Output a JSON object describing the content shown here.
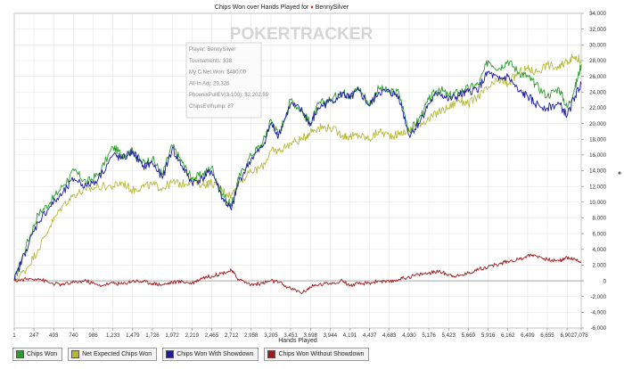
{
  "chart_data": {
    "type": "line",
    "title": "Chips Won over Hands Played for ",
    "player_name": "BennySilver",
    "watermark": "POKERTRACKER",
    "xlabel": "Hands Played",
    "ylabel": "",
    "xlim": [
      1,
      7078
    ],
    "ylim": [
      -6000,
      34000
    ],
    "x_ticks": [
      "1",
      "247",
      "493",
      "740",
      "986",
      "1,233",
      "1,479",
      "1,726",
      "1,972",
      "2,219",
      "2,465",
      "2,712",
      "2,958",
      "3,205",
      "3,451",
      "3,698",
      "3,944",
      "4,191",
      "4,437",
      "4,683",
      "4,930",
      "5,176",
      "5,423",
      "5,669",
      "5,916",
      "6,162",
      "6,409",
      "6,655",
      "6,902",
      "7,078"
    ],
    "y_ticks": [
      "-6,000",
      "-4,000",
      "-2,000",
      "0",
      "2,000",
      "4,000",
      "6,000",
      "8,000",
      "10,000",
      "12,000",
      "14,000",
      "16,000",
      "18,000",
      "20,000",
      "22,000",
      "24,000",
      "26,000",
      "28,000",
      "30,000",
      "32,000",
      "34,000"
    ],
    "grid": true,
    "legend_position": "bottom-left",
    "info_box": [
      "Player: BennySilver",
      "Tournaments: 338",
      "My C Net Won: $480.00",
      "All-In Adj: 29,326",
      "PhoenixPullEV(3-100): $2,202.59",
      "ChipsEV/hump: 87"
    ],
    "series": [
      {
        "name": "Chips Won",
        "color": "#2e9b2e",
        "x": [
          1,
          150,
          300,
          450,
          600,
          750,
          900,
          1050,
          1233,
          1350,
          1479,
          1600,
          1726,
          1850,
          1972,
          2100,
          2219,
          2350,
          2465,
          2600,
          2712,
          2800,
          2958,
          3100,
          3205,
          3300,
          3451,
          3600,
          3698,
          3800,
          3944,
          4100,
          4191,
          4300,
          4437,
          4550,
          4683,
          4800,
          4930,
          5050,
          5176,
          5300,
          5423,
          5550,
          5669,
          5800,
          5916,
          6050,
          6162,
          6300,
          6409,
          6500,
          6655,
          6800,
          6902,
          7000,
          7078
        ],
        "values": [
          0,
          4500,
          8500,
          10000,
          12000,
          14000,
          12500,
          13500,
          17000,
          16000,
          16500,
          15000,
          15500,
          13500,
          17200,
          15000,
          13000,
          13500,
          14500,
          11000,
          9500,
          13000,
          16000,
          17500,
          20500,
          18500,
          23000,
          21500,
          20000,
          22500,
          23000,
          24000,
          23500,
          24500,
          22500,
          24500,
          24000,
          24000,
          19000,
          20500,
          23000,
          24500,
          23500,
          24000,
          24500,
          25000,
          28000,
          27000,
          28000,
          26500,
          26000,
          25000,
          23500,
          24500,
          22000,
          24500,
          27500
        ]
      },
      {
        "name": "Net Expected Chips Won",
        "color": "#b7b93a",
        "x": [
          1,
          150,
          300,
          450,
          600,
          750,
          900,
          1050,
          1233,
          1350,
          1479,
          1600,
          1726,
          1850,
          1972,
          2100,
          2219,
          2350,
          2465,
          2600,
          2712,
          2800,
          2958,
          3100,
          3205,
          3300,
          3451,
          3600,
          3698,
          3800,
          3944,
          4100,
          4191,
          4300,
          4437,
          4550,
          4683,
          4800,
          4930,
          5050,
          5176,
          5300,
          5423,
          5550,
          5669,
          5800,
          5916,
          6050,
          6162,
          6300,
          6409,
          6500,
          6655,
          6800,
          6902,
          7000,
          7078
        ],
        "values": [
          0,
          1500,
          4000,
          7000,
          9500,
          11000,
          11500,
          12000,
          12000,
          12500,
          11500,
          12000,
          12200,
          11800,
          12500,
          12300,
          12800,
          12200,
          12500,
          11500,
          10800,
          12500,
          13800,
          14500,
          16500,
          16500,
          17500,
          18000,
          19000,
          19500,
          19500,
          18500,
          18300,
          18500,
          18000,
          19000,
          18500,
          18600,
          19200,
          20000,
          20500,
          21500,
          22000,
          23000,
          22500,
          23500,
          24500,
          25500,
          25000,
          26500,
          27000,
          26500,
          27500,
          27000,
          28000,
          28500,
          28000
        ]
      },
      {
        "name": "Chips Won With Showdown",
        "color": "#1c1c9c",
        "x": [
          1,
          150,
          300,
          450,
          600,
          750,
          900,
          1050,
          1233,
          1350,
          1479,
          1600,
          1726,
          1850,
          1972,
          2100,
          2219,
          2350,
          2465,
          2600,
          2712,
          2800,
          2958,
          3100,
          3205,
          3300,
          3451,
          3600,
          3698,
          3800,
          3944,
          4100,
          4191,
          4300,
          4437,
          4550,
          4683,
          4800,
          4930,
          5050,
          5176,
          5300,
          5423,
          5550,
          5669,
          5800,
          5916,
          6050,
          6162,
          6300,
          6409,
          6500,
          6655,
          6800,
          6902,
          7000,
          7078
        ],
        "values": [
          0,
          4000,
          7500,
          9500,
          11000,
          13000,
          12000,
          13000,
          16000,
          15500,
          16500,
          14500,
          15000,
          13000,
          16800,
          14500,
          12500,
          13000,
          14000,
          10500,
          9000,
          12500,
          15500,
          17000,
          20000,
          18500,
          22500,
          21500,
          19800,
          22000,
          22800,
          23800,
          23200,
          24200,
          22200,
          24000,
          24000,
          23500,
          18500,
          20000,
          22500,
          24000,
          23000,
          23500,
          24000,
          24500,
          26500,
          25500,
          26000,
          24000,
          23500,
          22500,
          22000,
          22500,
          21000,
          23500,
          25000
        ]
      },
      {
        "name": "Chips Won Without Showdown",
        "color": "#9c1c1c",
        "x": [
          1,
          150,
          300,
          450,
          600,
          750,
          900,
          1050,
          1233,
          1350,
          1479,
          1600,
          1726,
          1850,
          1972,
          2100,
          2219,
          2350,
          2465,
          2600,
          2712,
          2800,
          2958,
          3100,
          3205,
          3300,
          3451,
          3600,
          3698,
          3800,
          3944,
          4100,
          4191,
          4300,
          4437,
          4550,
          4683,
          4800,
          4930,
          5050,
          5176,
          5300,
          5423,
          5550,
          5669,
          5800,
          5916,
          6050,
          6162,
          6300,
          6409,
          6500,
          6655,
          6800,
          6902,
          7000,
          7078
        ],
        "values": [
          0,
          200,
          300,
          -300,
          -500,
          -200,
          0,
          -600,
          -300,
          -400,
          0,
          -100,
          -300,
          -500,
          -200,
          -100,
          -300,
          400,
          600,
          1000,
          1300,
          200,
          -500,
          -300,
          0,
          -200,
          -1000,
          -1500,
          -800,
          -500,
          -300,
          0,
          -600,
          -400,
          -300,
          0,
          -200,
          200,
          500,
          800,
          1000,
          1200,
          800,
          600,
          1000,
          1500,
          1800,
          2100,
          2500,
          2700,
          3200,
          3300,
          2700,
          2500,
          3000,
          2700,
          2400
        ]
      }
    ]
  }
}
